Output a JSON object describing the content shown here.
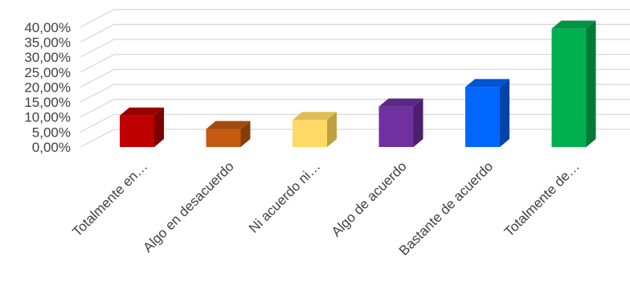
{
  "chart_data": {
    "type": "bar",
    "style": "3d-column",
    "categories": [
      "Totalmente en…",
      "Algo en desacuerdo",
      "Ni acuerdo ni…",
      "Algo de acuerdo",
      "Bastante de acuerdo",
      "Totalmente de…"
    ],
    "values": [
      10.5,
      6.0,
      9.0,
      13.5,
      20.0,
      39.5
    ],
    "value_format": "percent-2-decimals",
    "ylim": [
      0,
      40
    ],
    "yticks": [
      "0,00%",
      "5,00%",
      "10,00%",
      "15,00%",
      "20,00%",
      "25,00%",
      "30,00%",
      "35,00%",
      "40,00%"
    ],
    "ytick_values": [
      0,
      5,
      10,
      15,
      20,
      25,
      30,
      35,
      40
    ],
    "grid": true,
    "legend": "none",
    "title": "",
    "xlabel": "",
    "ylabel": "",
    "colors": [
      {
        "front": "#c00000",
        "side": "#7f0000",
        "top": "#9a0000"
      },
      {
        "front": "#c55a11",
        "side": "#843c0c",
        "top": "#a34a0e"
      },
      {
        "front": "#ffd966",
        "side": "#bf9f40",
        "top": "#e0bd52"
      },
      {
        "front": "#7030a0",
        "side": "#4b1f6b",
        "top": "#5c2785"
      },
      {
        "front": "#0066ff",
        "side": "#0044aa",
        "top": "#0055d4"
      },
      {
        "front": "#00b050",
        "side": "#007a38",
        "top": "#009444"
      }
    ],
    "gridline_color": "#d9d9d9"
  }
}
